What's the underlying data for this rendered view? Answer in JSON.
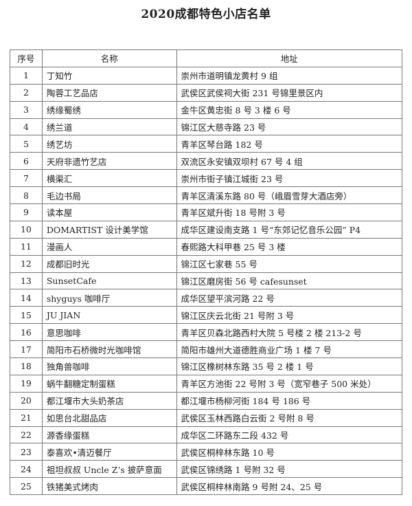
{
  "title": "2020成都特色小店名单",
  "headers": [
    "序号",
    "名称",
    "地址"
  ],
  "rows": [
    [
      "1",
      "丁知竹",
      "崇州市道明镇龙黄村 9 组"
    ],
    [
      "2",
      "陶蓉工艺品店",
      "武侯区武侯祠大街 231 号锦里景区内"
    ],
    [
      "3",
      "绣缘蜀绣",
      "金牛区黄忠街 8 号 3 楼 6 号"
    ],
    [
      "4",
      "绣兰道",
      "锦江区大慈寺路 23 号"
    ],
    [
      "5",
      "绣艺坊",
      "青羊区琴台路 182 号"
    ],
    [
      "6",
      "天府非遗竹艺店",
      "双流区永安镇双坝村 67 号 4 组"
    ],
    [
      "7",
      "横渠汇",
      "崇州市街子镇江城街 23 号"
    ],
    [
      "8",
      "毛边书局",
      "青羊区清溪东路 80 号（峨眉雪芽大酒店旁）"
    ],
    [
      "9",
      "读本屋",
      "青羊区斌升街 18 号附 3 号"
    ],
    [
      "10",
      "DOMARTIST 设计美学馆",
      "成华区建设南支路 1 号“东郊记忆音乐公园” P4"
    ],
    [
      "11",
      "漫画人",
      "春熙路大科甲巷 25 号 3 楼"
    ],
    [
      "12",
      "成都旧时光",
      "锦江区七家巷 55 号"
    ],
    [
      "13",
      "SunsetCafe",
      "锦江区磨房街 56 号 cafesunset"
    ],
    [
      "14",
      "shyguys 咖啡厅",
      "成华区望平滨河路 22 号"
    ],
    [
      "15",
      "JU  JIAN",
      "锦江区庆云北街 21 号附 3 号"
    ],
    [
      "16",
      "意思咖啡",
      "青羊区贝森北路西村大院  5  号楼  2  楼  213-2  号"
    ],
    [
      "17",
      "简阳市石桥微时光咖啡馆",
      "简阳市雄州大道德胜商业广场 1 楼 7 号"
    ],
    [
      "18",
      "独角兽咖啡",
      "锦江区橡树林东路 35 号 2 楼 1 号"
    ],
    [
      "19",
      "蜗牛翻糖定制蛋糕",
      "青羊区方池街 22 号附 3 号（宽窄巷子 500 米处）"
    ],
    [
      "20",
      "都江堰市大头奶茶店",
      "都江堰市杨柳河街 184 号 186 号"
    ],
    [
      "21",
      "如思台北甜品店",
      "武侯区玉林西路白云街 2 号附 8 号"
    ],
    [
      "22",
      "源香缘蛋糕",
      "成华区二环路东二段 432 号"
    ],
    [
      "23",
      "泰喜欢•清迈餐厅",
      "武侯区桐梓林东路 10 号"
    ],
    [
      "24",
      "祖坦叔叔 Uncle Z’s 披萨意面",
      "武侯区锦绣路 1 号附 32 号"
    ],
    [
      "25",
      "铁猪美式烤肉",
      "武侯区桐梓林南路 9 号附 24、25 号"
    ]
  ]
}
